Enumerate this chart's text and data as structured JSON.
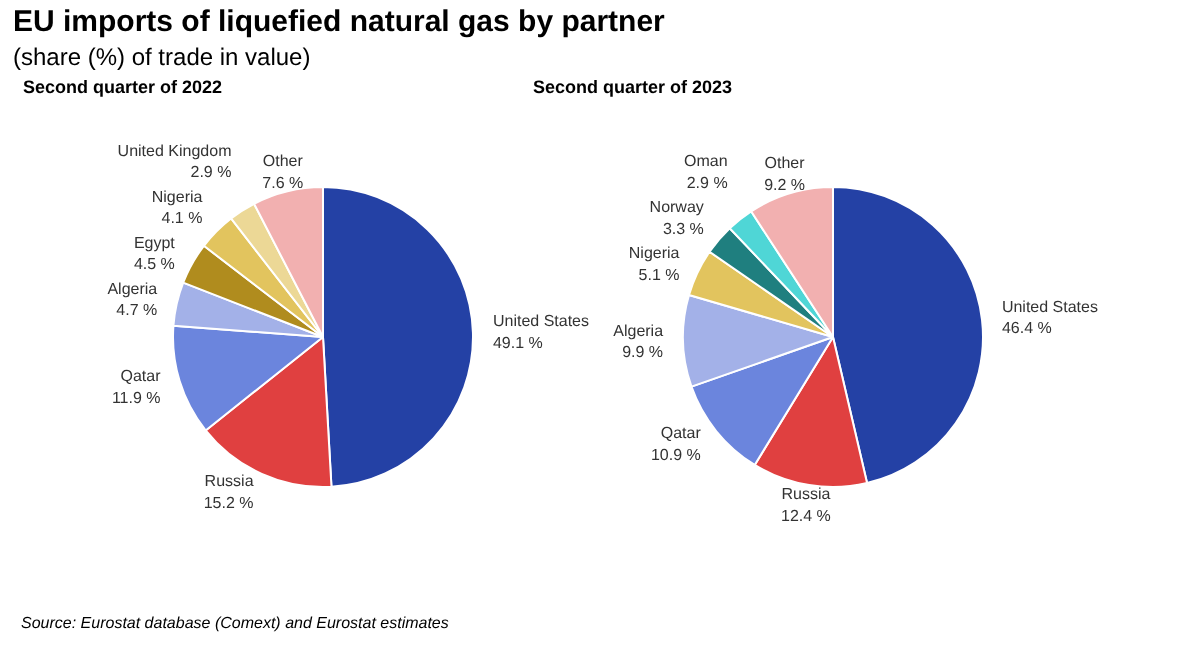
{
  "chart_data": [
    {
      "type": "other",
      "title": "EU imports of liquefied natural gas by partner",
      "subtitle": "(share (%) of trade in value)",
      "annotations": [
        "Source: Eurostat database (Comext) and Eurostat estimates"
      ]
    },
    {
      "type": "pie",
      "title": "Second quarter of 2022",
      "categories": [
        "United States",
        "Russia",
        "Qatar",
        "Algeria",
        "Egypt",
        "Nigeria",
        "United Kingdom",
        "Other"
      ],
      "values": [
        49.1,
        15.2,
        11.9,
        4.7,
        4.5,
        4.1,
        2.9,
        7.6
      ],
      "value_labels": [
        "49.1 %",
        "15.2 %",
        "11.9 %",
        "4.7 %",
        "4.5 %",
        "4.1 %",
        "2.9 %",
        "7.6 %"
      ],
      "colors": [
        "#2441a5",
        "#e04040",
        "#6b85dd",
        "#a3b1e8",
        "#b08c1e",
        "#e2c45e",
        "#ecd896",
        "#f2b0b0"
      ]
    },
    {
      "type": "pie",
      "title": "Second quarter of 2023",
      "categories": [
        "United States",
        "Russia",
        "Qatar",
        "Algeria",
        "Nigeria",
        "Norway",
        "Oman",
        "Other"
      ],
      "values": [
        46.4,
        12.4,
        10.9,
        9.9,
        5.1,
        3.3,
        2.9,
        9.2
      ],
      "value_labels": [
        "46.4 %",
        "12.4 %",
        "10.9 %",
        "9.9 %",
        "5.1 %",
        "3.3 %",
        "2.9 %",
        "9.2 %"
      ],
      "colors": [
        "#2441a5",
        "#e04040",
        "#6b85dd",
        "#a3b1e8",
        "#e2c45e",
        "#1f7f7f",
        "#4fd6d6",
        "#f2b0b0"
      ]
    }
  ]
}
